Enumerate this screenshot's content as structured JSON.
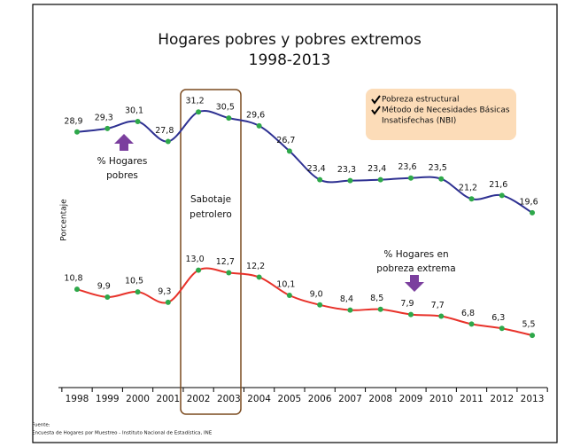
{
  "chart_data": {
    "type": "line",
    "title": "Hogares pobres y pobres extremos",
    "subtitle": "1998-2013",
    "y_label": "Porcentaje",
    "categories": [
      "1998",
      "1999",
      "2000",
      "2001",
      "2002",
      "2003",
      "2004",
      "2005",
      "2006",
      "2007",
      "2008",
      "2009",
      "2010",
      "2011",
      "2012",
      "2013"
    ],
    "ylim": [
      0,
      33
    ],
    "marker_color": "#2ea84a",
    "series": [
      {
        "name": "% Hogares pobres",
        "color": "#2e3192",
        "values": [
          28.9,
          29.3,
          30.1,
          27.8,
          31.2,
          30.5,
          29.6,
          26.7,
          23.4,
          23.3,
          23.4,
          23.6,
          23.5,
          21.2,
          21.6,
          19.6
        ],
        "value_labels": [
          "28,9",
          "29,3",
          "30,1",
          "27,8",
          "31,2",
          "30,5",
          "29,6",
          "26,7",
          "23,4",
          "23,3",
          "23,4",
          "23,6",
          "23,5",
          "21,2",
          "21,6",
          "19,6"
        ]
      },
      {
        "name": "% Hogares en pobreza extrema",
        "color": "#e8322a",
        "values": [
          10.8,
          9.9,
          10.5,
          9.3,
          13.0,
          12.7,
          12.2,
          10.1,
          9.0,
          8.4,
          8.5,
          7.9,
          7.7,
          6.8,
          6.3,
          5.5
        ],
        "value_labels": [
          "10,8",
          "9,9",
          "10,5",
          "9,3",
          "13,0",
          "12,7",
          "12,2",
          "10,1",
          "9,0",
          "8,4",
          "8,5",
          "7,9",
          "7,7",
          "6,8",
          "6,3",
          "5,5"
        ]
      }
    ],
    "series_labels": [
      [
        "% Hogares",
        "pobres"
      ],
      [
        "% Hogares en",
        "pobreza extrema"
      ]
    ],
    "highlight_label": [
      "Sabotaje",
      "petrolero"
    ],
    "arrow_color": "#7b3f9e",
    "note": {
      "color": "#fcdcb8",
      "items": [
        [
          "Pobreza estructural"
        ],
        [
          "Método de Necesidades Básicas",
          "Insatisfechas (NBI)"
        ]
      ]
    },
    "source": [
      "Fuente:",
      "Encuesta de Hogares por Muestreo - Instituto Nacional de Estadística, INE"
    ]
  }
}
